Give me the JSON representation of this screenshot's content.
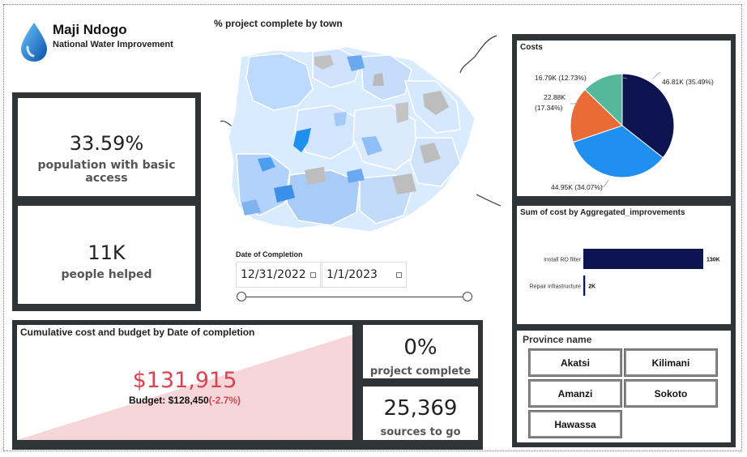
{
  "header": {
    "title": "Maji Ndogo",
    "subtitle": "National Water Improvement"
  },
  "kpi_population": {
    "value": "33.59%",
    "label": "population with basic access"
  },
  "kpi_people": {
    "value": "11K",
    "label": "people helped"
  },
  "map": {
    "title": "% project complete by town"
  },
  "date_filter": {
    "label": "Date of Completion",
    "start": "12/31/2022",
    "end": "1/1/2023"
  },
  "cumulative": {
    "title": "Cumulative cost and budget by Date of completion",
    "amount": "$131,915",
    "budget_label": "Budget: $128,450",
    "budget_delta": "(-2.7%)",
    "accent": "#d64550"
  },
  "kpi_complete": {
    "value": "0%",
    "label": "project complete"
  },
  "kpi_sources": {
    "value": "25,369",
    "label": "sources to go"
  },
  "costs_pie": {
    "title": "Costs",
    "chart_data": {
      "type": "pie",
      "title": "Costs",
      "slices": [
        {
          "label": "46.81K (35.49%)",
          "value": 46.81,
          "percent": 35.49,
          "color": "#0d1450"
        },
        {
          "label": "44.95K (34.07%)",
          "value": 44.95,
          "percent": 34.07,
          "color": "#1f8ff0"
        },
        {
          "label": "22.88K (17.34%)",
          "value": 22.88,
          "percent": 17.34,
          "color": "#e86b36"
        },
        {
          "label": "16.79K (12.73%)",
          "value": 16.79,
          "percent": 12.73,
          "color": "#56b89a"
        }
      ]
    }
  },
  "improvements_bar": {
    "title": "Sum of cost by Aggregated_improvements",
    "chart_data": {
      "type": "bar",
      "orientation": "horizontal",
      "categories": [
        "Install RO filter",
        "Repair infrastructure"
      ],
      "values": [
        130,
        2
      ],
      "value_labels": [
        "130K",
        "2K"
      ],
      "color": "#0d1450"
    }
  },
  "province": {
    "title": "Province name",
    "options": [
      "Akatsi",
      "Kilimani",
      "Amanzi",
      "Sokoto",
      "Hawassa"
    ]
  }
}
